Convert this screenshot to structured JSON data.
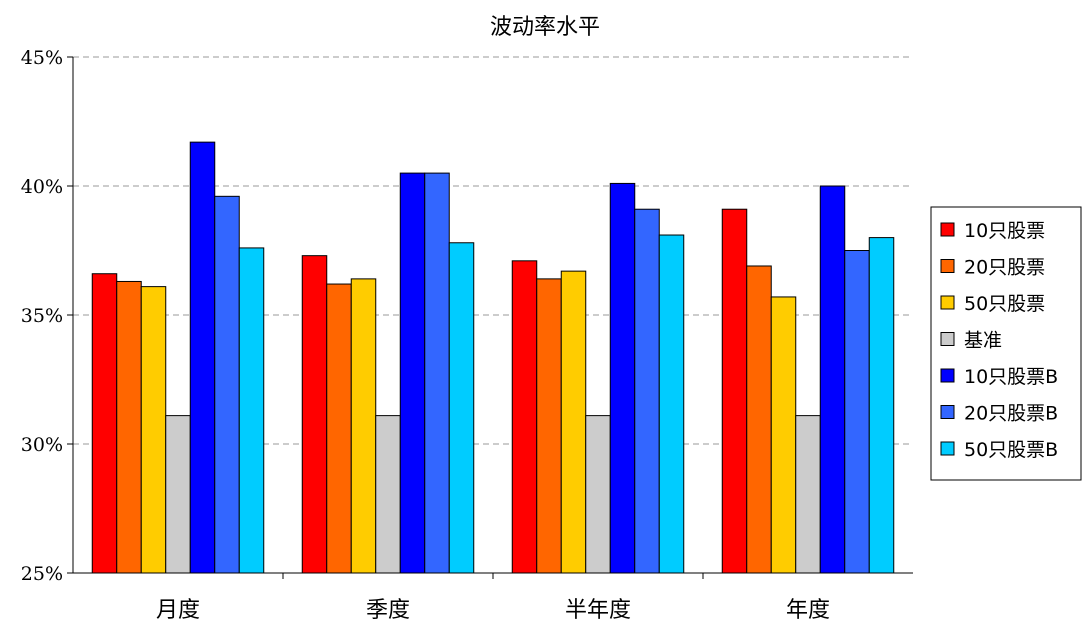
{
  "chart_data": {
    "type": "bar",
    "title": "波动率水平",
    "xlabel": "",
    "ylabel": "",
    "categories": [
      "月度",
      "季度",
      "半年度",
      "年度"
    ],
    "ylim": [
      25,
      45
    ],
    "yticks": [
      25,
      30,
      35,
      40,
      45
    ],
    "ytick_labels": [
      "25%",
      "30%",
      "35%",
      "40%",
      "45%"
    ],
    "grid": true,
    "legend_position": "right",
    "series": [
      {
        "name": "10只股票",
        "color": "#ff0000",
        "values": [
          36.6,
          37.3,
          37.1,
          39.1
        ]
      },
      {
        "name": "20只股票",
        "color": "#ff6600",
        "values": [
          36.3,
          36.2,
          36.4,
          36.9
        ]
      },
      {
        "name": "50只股票",
        "color": "#ffcc00",
        "values": [
          36.1,
          36.4,
          36.7,
          35.7
        ]
      },
      {
        "name": "基准",
        "color": "#cccccc",
        "values": [
          31.1,
          31.1,
          31.1,
          31.1
        ]
      },
      {
        "name": "10只股票B",
        "color": "#0000ff",
        "values": [
          41.7,
          40.5,
          40.1,
          40.0
        ]
      },
      {
        "name": "20只股票B",
        "color": "#3366ff",
        "values": [
          39.6,
          40.5,
          39.1,
          37.5
        ]
      },
      {
        "name": "50只股票B",
        "color": "#00ccff",
        "values": [
          37.6,
          37.8,
          38.1,
          38.0
        ]
      }
    ]
  }
}
